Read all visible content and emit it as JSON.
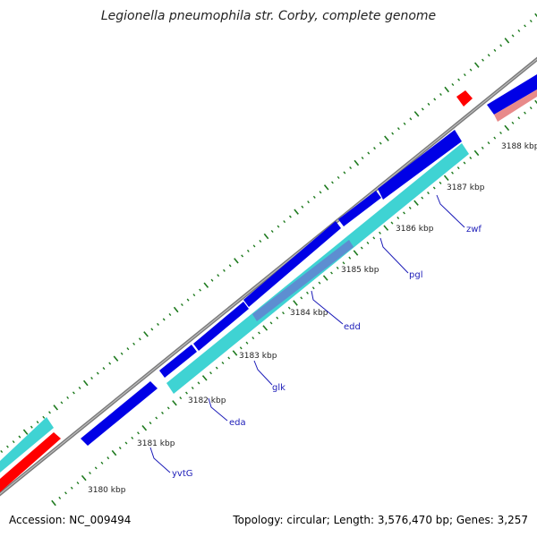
{
  "title": "Legionella pneumophila str. Corby, complete genome",
  "footer": {
    "accession": "Accession: NC_009494",
    "stats": "Topology: circular; Length: 3,576,470 bp; Genes: 3,257"
  },
  "scale_labels": [
    "3180 kbp",
    "3181 kbp",
    "3182 kbp",
    "3183 kbp",
    "3184 kbp",
    "3185 kbp",
    "3186 kbp",
    "3187 kbp",
    "3188 kbp"
  ],
  "gene_labels": [
    "yvtG",
    "eda",
    "glk",
    "edd",
    "pgl",
    "zwf"
  ],
  "colors": {
    "backbone": "#808080",
    "forward_cds": "#0000e6",
    "reverse_cds": "#3fd3d3",
    "rna": "#ff0000",
    "highlight": "#e88a8a",
    "tick": "#1e7a1e",
    "label_text": "#1c1cb8"
  }
}
